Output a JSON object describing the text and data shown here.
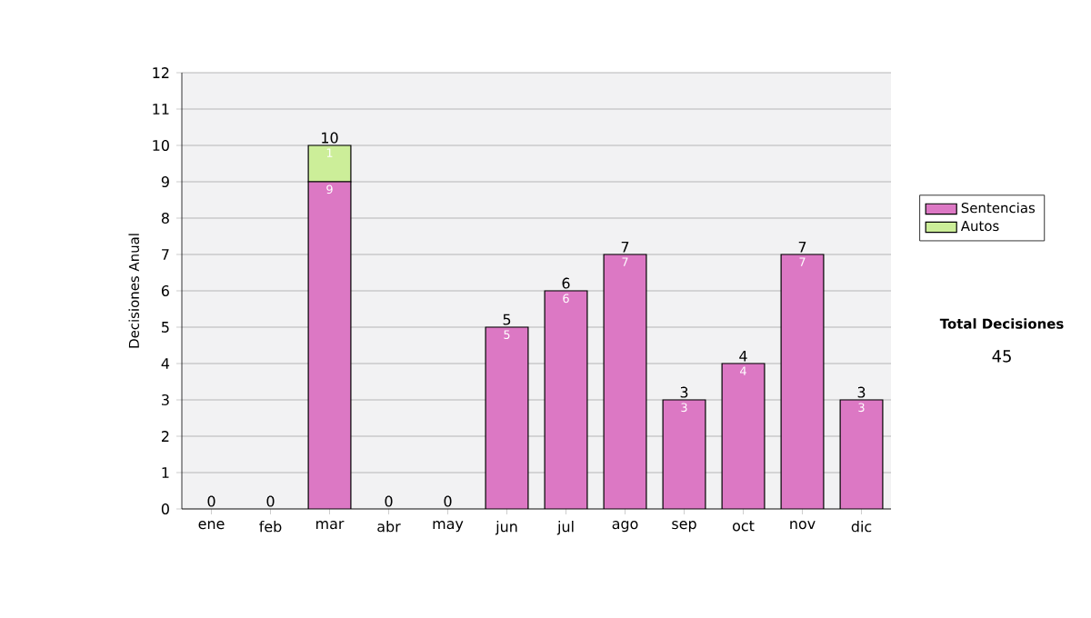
{
  "chart_data": {
    "type": "bar",
    "stacked": true,
    "categories": [
      "ene",
      "feb",
      "mar",
      "abr",
      "may",
      "jun",
      "jul",
      "ago",
      "sep",
      "oct",
      "nov",
      "dic"
    ],
    "series": [
      {
        "name": "Sentencias",
        "color": "#dc78c4",
        "values": [
          0,
          0,
          9,
          0,
          0,
          5,
          6,
          7,
          3,
          4,
          7,
          3
        ],
        "value_labels": [
          null,
          null,
          "9",
          null,
          null,
          "5",
          "6",
          "7",
          "3",
          "4",
          "7",
          "3"
        ]
      },
      {
        "name": "Autos",
        "color": "#ccee99",
        "values": [
          0,
          0,
          1,
          0,
          0,
          0,
          0,
          0,
          0,
          0,
          0,
          0
        ],
        "value_labels": [
          null,
          null,
          "1",
          null,
          null,
          null,
          null,
          null,
          null,
          null,
          null,
          null
        ]
      }
    ],
    "totals": [
      "0",
      "0",
      "10",
      "0",
      "0",
      "5",
      "6",
      "7",
      "3",
      "4",
      "7",
      "3"
    ],
    "ylabel": "Decisiones Anual",
    "ylim": [
      0,
      12
    ],
    "yticks": [
      0,
      1,
      2,
      3,
      4,
      5,
      6,
      7,
      8,
      9,
      10,
      11,
      12
    ],
    "grid": "y",
    "legend": "right",
    "annotations": [
      "Total Decisiones",
      "45"
    ]
  }
}
